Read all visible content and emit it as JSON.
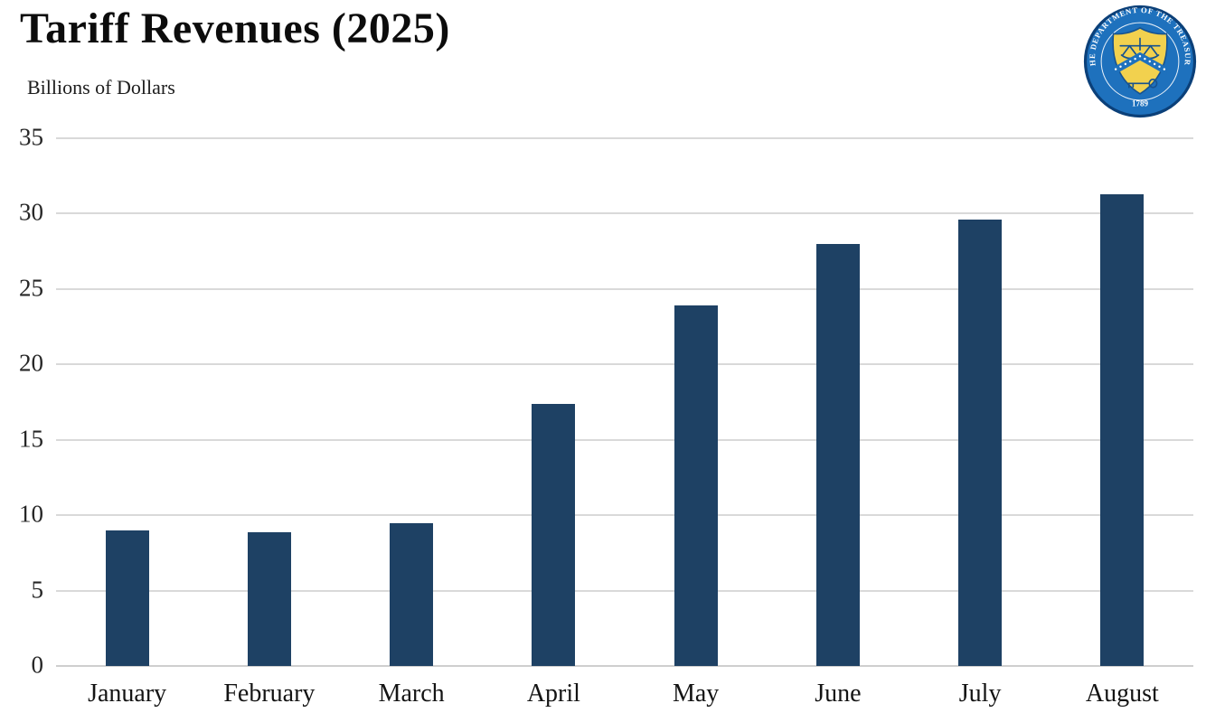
{
  "header": {
    "title": "Tariff Revenues (2025)",
    "subtitle": "Billions of Dollars"
  },
  "seal": {
    "ring_text": "THE DEPARTMENT OF THE TREASURY",
    "year": "1789",
    "colors": {
      "edge": "#0b4079",
      "ring": "#1e71bd",
      "inner_circle_stroke": "#ffffff",
      "shield_fill": "#f2d14e",
      "shield_stroke": "#17528f",
      "chevron": "#1e71bd",
      "star": "#ffffff",
      "text": "#ffffff"
    }
  },
  "chart_data": {
    "type": "bar",
    "title": "Tariff Revenues (2025)",
    "xlabel": "",
    "ylabel": "Billions of Dollars",
    "categories": [
      "January",
      "February",
      "March",
      "April",
      "May",
      "June",
      "July",
      "August"
    ],
    "values": [
      9.0,
      8.9,
      9.5,
      17.4,
      23.9,
      28.0,
      29.6,
      31.3
    ],
    "ylim": [
      0,
      35
    ],
    "yticks": [
      0,
      5,
      10,
      15,
      20,
      25,
      30,
      35
    ],
    "grid": true,
    "legend": "none",
    "bar_color": "#1e4164",
    "gridline_color": "#d9d9d9",
    "baseline_color": "#cfcfcf"
  }
}
